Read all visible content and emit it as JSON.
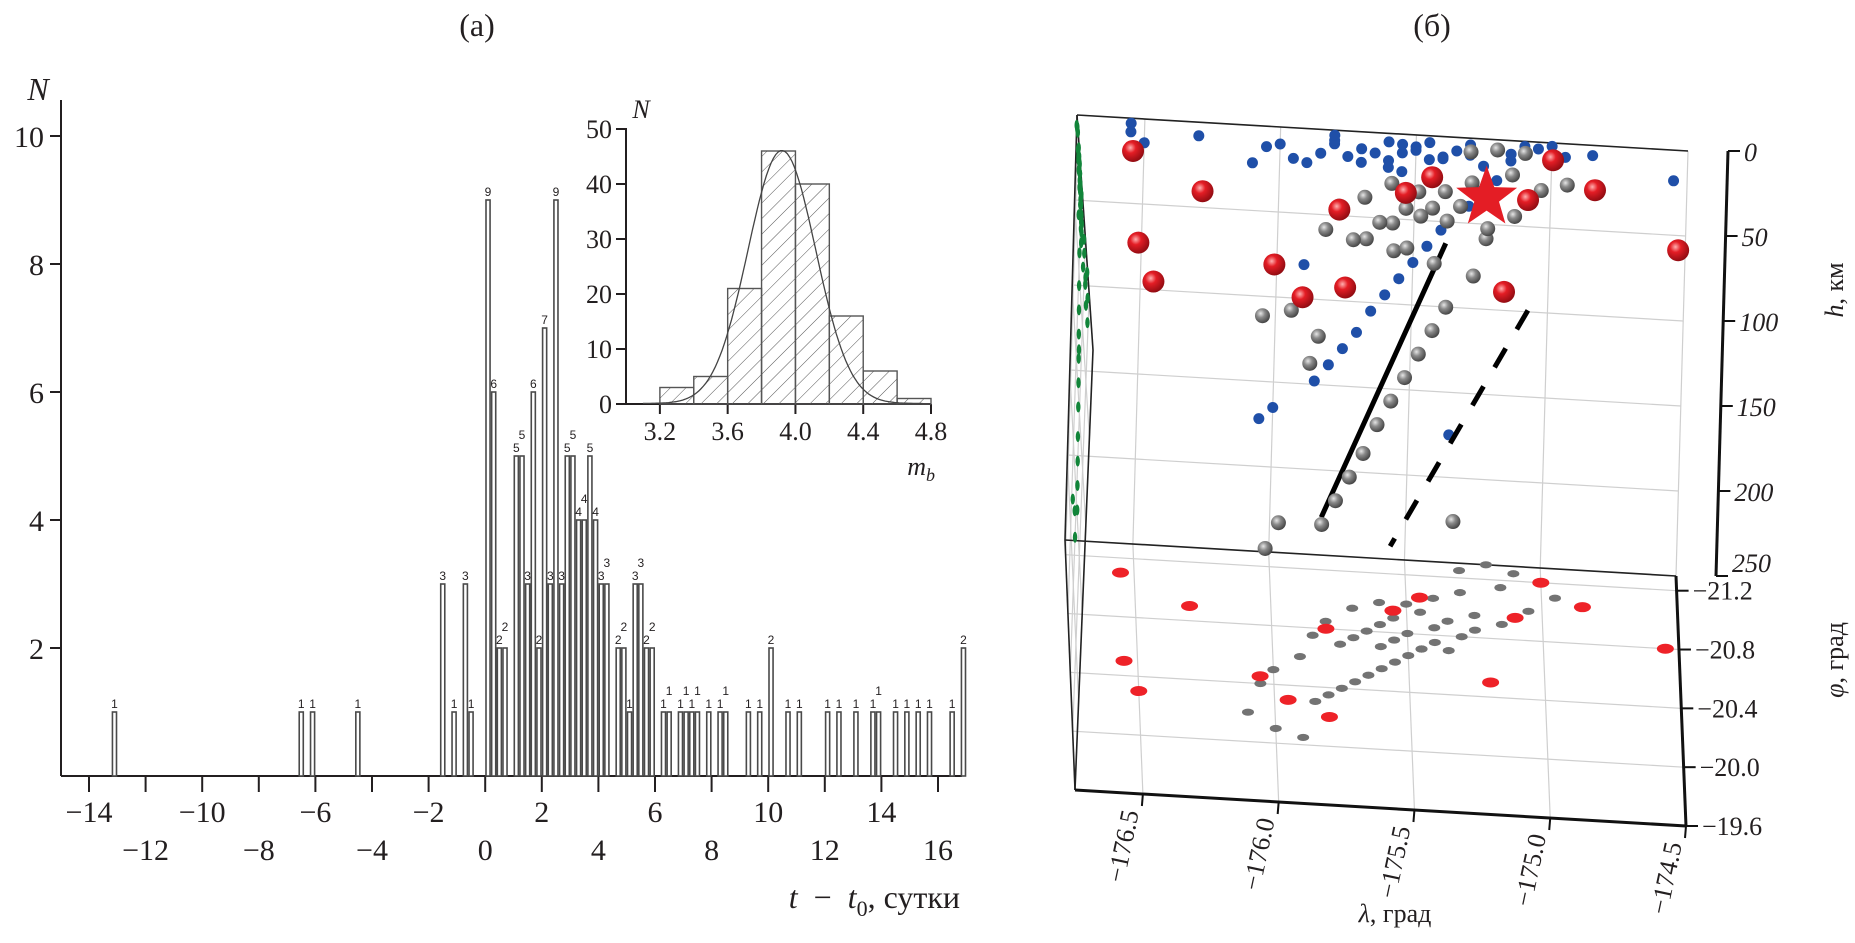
{
  "figure": {
    "panel_a_title": "(a)",
    "panel_b_title": "(б)"
  },
  "chart_data": [
    {
      "type": "bar",
      "name": "main-histogram",
      "title": "(a)",
      "xlabel": "t − t0, сутки",
      "xlabel_parts": {
        "t": "t",
        "minus": "−",
        "t0": "t",
        "sub": "0",
        "unit": ", сутки"
      },
      "ylabel": "N",
      "xlim": [
        -15.5,
        17.3
      ],
      "ylim": [
        0,
        10.6
      ],
      "bin_width": 0.2,
      "x_ticks_major": [
        -14,
        -10,
        -6,
        -2,
        2,
        6,
        10,
        14
      ],
      "x_ticks_minor": [
        -12,
        -8,
        -4,
        0,
        4,
        8,
        12,
        16
      ],
      "x_tick_labels_top": [
        "−14",
        "−10",
        "−6",
        "−2",
        "2",
        "6",
        "10",
        "14"
      ],
      "x_tick_labels_bottom": [
        "−12",
        "−8",
        "−4",
        "0",
        "4",
        "8",
        "12",
        "16"
      ],
      "y_ticks": [
        2,
        4,
        6,
        8,
        10
      ],
      "y_tick_labels": [
        "2",
        "4",
        "6",
        "8",
        "10"
      ],
      "bars": [
        {
          "x": -13.2,
          "n": 1
        },
        {
          "x": -6.6,
          "n": 1
        },
        {
          "x": -6.2,
          "n": 1
        },
        {
          "x": -4.6,
          "n": 1
        },
        {
          "x": -1.6,
          "n": 3
        },
        {
          "x": -1.2,
          "n": 1
        },
        {
          "x": -0.8,
          "n": 3
        },
        {
          "x": -0.6,
          "n": 1
        },
        {
          "x": 0.0,
          "n": 9
        },
        {
          "x": 0.2,
          "n": 6
        },
        {
          "x": 0.4,
          "n": 2
        },
        {
          "x": 0.6,
          "n": 2
        },
        {
          "x": 1.0,
          "n": 5
        },
        {
          "x": 1.2,
          "n": 5
        },
        {
          "x": 1.4,
          "n": 3
        },
        {
          "x": 1.6,
          "n": 6
        },
        {
          "x": 1.8,
          "n": 2
        },
        {
          "x": 2.0,
          "n": 7
        },
        {
          "x": 2.2,
          "n": 3
        },
        {
          "x": 2.4,
          "n": 9
        },
        {
          "x": 2.6,
          "n": 3
        },
        {
          "x": 2.8,
          "n": 5
        },
        {
          "x": 3.0,
          "n": 5
        },
        {
          "x": 3.2,
          "n": 4
        },
        {
          "x": 3.4,
          "n": 4
        },
        {
          "x": 3.6,
          "n": 5
        },
        {
          "x": 3.8,
          "n": 4
        },
        {
          "x": 4.0,
          "n": 3
        },
        {
          "x": 4.2,
          "n": 3
        },
        {
          "x": 4.6,
          "n": 2
        },
        {
          "x": 4.8,
          "n": 2
        },
        {
          "x": 5.0,
          "n": 1
        },
        {
          "x": 5.2,
          "n": 3
        },
        {
          "x": 5.4,
          "n": 3
        },
        {
          "x": 5.6,
          "n": 2
        },
        {
          "x": 5.8,
          "n": 2
        },
        {
          "x": 6.2,
          "n": 1
        },
        {
          "x": 6.4,
          "n": 1
        },
        {
          "x": 6.8,
          "n": 1
        },
        {
          "x": 7.0,
          "n": 1
        },
        {
          "x": 7.2,
          "n": 1
        },
        {
          "x": 7.4,
          "n": 1
        },
        {
          "x": 7.8,
          "n": 1
        },
        {
          "x": 8.2,
          "n": 1
        },
        {
          "x": 8.4,
          "n": 1
        },
        {
          "x": 9.2,
          "n": 1
        },
        {
          "x": 9.6,
          "n": 1
        },
        {
          "x": 10.0,
          "n": 2
        },
        {
          "x": 10.6,
          "n": 1
        },
        {
          "x": 11.0,
          "n": 1
        },
        {
          "x": 12.0,
          "n": 1
        },
        {
          "x": 12.4,
          "n": 1
        },
        {
          "x": 13.0,
          "n": 1
        },
        {
          "x": 13.6,
          "n": 1
        },
        {
          "x": 13.8,
          "n": 1
        },
        {
          "x": 14.4,
          "n": 1
        },
        {
          "x": 14.8,
          "n": 1
        },
        {
          "x": 15.2,
          "n": 1
        },
        {
          "x": 15.6,
          "n": 1
        },
        {
          "x": 16.4,
          "n": 1
        },
        {
          "x": 16.8,
          "n": 2
        }
      ]
    },
    {
      "type": "bar",
      "name": "magnitude-inset-histogram",
      "xlabel": "mb",
      "xlabel_parts": {
        "m": "m",
        "sub": "b"
      },
      "ylabel": "N",
      "xlim": [
        3.0,
        4.8
      ],
      "ylim": [
        0,
        50
      ],
      "x_ticks": [
        3.2,
        3.6,
        4.0,
        4.4,
        4.8
      ],
      "x_tick_labels": [
        "3.2",
        "3.6",
        "4.0",
        "4.4",
        "4.8"
      ],
      "y_ticks": [
        0,
        10,
        20,
        30,
        40,
        50
      ],
      "y_tick_labels": [
        "0",
        "10",
        "20",
        "30",
        "40",
        "50"
      ],
      "bin_edges": [
        3.2,
        3.4,
        3.6,
        3.8,
        4.0,
        4.2,
        4.4,
        4.6,
        4.8
      ],
      "values": [
        3,
        5,
        21,
        46,
        40,
        16,
        6,
        1
      ],
      "fit_curve": {
        "type": "gaussian",
        "mean": 3.92,
        "sigma": 0.2,
        "peak": 46,
        "x_range": [
          3.1,
          4.75
        ]
      }
    },
    {
      "type": "scatter",
      "name": "hypocenter-3d",
      "title": "(б)",
      "xlabel": "λ, град",
      "ylabel": "φ, град",
      "zlabel": "h, км",
      "xlabel_parts": {
        "sym": "λ",
        "unit": ", град"
      },
      "ylabel_parts": {
        "sym": "φ",
        "unit": ", град"
      },
      "zlabel_parts": {
        "sym": "h",
        "unit": ", км"
      },
      "xlim": [
        -176.75,
        -174.5
      ],
      "ylim": [
        -19.6,
        -21.3
      ],
      "zlim": [
        0,
        250
      ],
      "x_ticks": [
        -176.5,
        -176.0,
        -175.5,
        -175.0,
        -174.5
      ],
      "x_tick_labels": [
        "−176.5",
        "−176.0",
        "−175.5",
        "−175.0",
        "−174.5"
      ],
      "y_ticks": [
        -21.2,
        -20.8,
        -20.4,
        -20.0,
        -19.6
      ],
      "y_tick_labels": [
        "−21.2",
        "−20.8",
        "−20.4",
        "−20.0",
        "−19.6"
      ],
      "z_ticks": [
        0,
        50,
        100,
        150,
        200,
        250
      ],
      "z_tick_labels": [
        "0",
        "50",
        "100",
        "150",
        "200",
        "250"
      ],
      "colors": {
        "main": "#e41d25",
        "aftershock": "#7a7a7a",
        "proj_xz": "#1f4fa8",
        "proj_yz": "#12853a",
        "line": "#000000"
      },
      "mainshock": {
        "lon": -175.25,
        "lat": -21.0,
        "depth": 10
      },
      "large_events": [
        {
          "lon": -176.55,
          "lat": -21.1,
          "depth": 3
        },
        {
          "lon": -176.55,
          "lat": -20.5,
          "depth": 8
        },
        {
          "lon": -176.5,
          "lat": -20.3,
          "depth": 14
        },
        {
          "lon": -176.05,
          "lat": -20.45,
          "depth": 12
        },
        {
          "lon": -175.95,
          "lat": -20.3,
          "depth": 18
        },
        {
          "lon": -175.8,
          "lat": -20.8,
          "depth": 6
        },
        {
          "lon": -175.55,
          "lat": -20.95,
          "depth": 6
        },
        {
          "lon": -175.45,
          "lat": -21.05,
          "depth": 4
        },
        {
          "lon": -175.2,
          "lat": -20.5,
          "depth": 24
        },
        {
          "lon": -175.1,
          "lat": -20.95,
          "depth": 6
        },
        {
          "lon": -175.0,
          "lat": -21.2,
          "depth": 2
        },
        {
          "lon": -174.85,
          "lat": -21.05,
          "depth": 6
        },
        {
          "lon": -174.55,
          "lat": -20.8,
          "depth": 18
        },
        {
          "lon": -175.8,
          "lat": -20.2,
          "depth": 3
        },
        {
          "lon": -176.3,
          "lat": -20.9,
          "depth": 8
        }
      ],
      "aftershocks": [
        {
          "lon": -175.3,
          "lat": -21.25,
          "depth": 4
        },
        {
          "lon": -175.2,
          "lat": -21.3,
          "depth": 6
        },
        {
          "lon": -175.1,
          "lat": -21.25,
          "depth": 3
        },
        {
          "lon": -175.15,
          "lat": -21.15,
          "depth": 8
        },
        {
          "lon": -175.3,
          "lat": -21.1,
          "depth": 10
        },
        {
          "lon": -175.4,
          "lat": -21.05,
          "depth": 12
        },
        {
          "lon": -175.5,
          "lat": -21.0,
          "depth": 9
        },
        {
          "lon": -175.45,
          "lat": -20.95,
          "depth": 14
        },
        {
          "lon": -175.55,
          "lat": -20.9,
          "depth": 11
        },
        {
          "lon": -175.6,
          "lat": -20.85,
          "depth": 16
        },
        {
          "lon": -175.65,
          "lat": -20.8,
          "depth": 12
        },
        {
          "lon": -175.5,
          "lat": -20.8,
          "depth": 7
        },
        {
          "lon": -175.4,
          "lat": -20.85,
          "depth": 13
        },
        {
          "lon": -175.35,
          "lat": -20.9,
          "depth": 8
        },
        {
          "lon": -175.7,
          "lat": -20.75,
          "depth": 18
        },
        {
          "lon": -175.75,
          "lat": -20.7,
          "depth": 15
        },
        {
          "lon": -175.6,
          "lat": -20.7,
          "depth": 20
        },
        {
          "lon": -175.55,
          "lat": -20.75,
          "depth": 22
        },
        {
          "lon": -175.45,
          "lat": -20.7,
          "depth": 26
        },
        {
          "lon": -175.25,
          "lat": -20.95,
          "depth": 30
        },
        {
          "lon": -175.3,
          "lat": -20.8,
          "depth": 40
        },
        {
          "lon": -175.4,
          "lat": -20.75,
          "depth": 55
        },
        {
          "lon": -175.45,
          "lat": -20.7,
          "depth": 65
        },
        {
          "lon": -175.5,
          "lat": -20.65,
          "depth": 75
        },
        {
          "lon": -175.55,
          "lat": -20.6,
          "depth": 85
        },
        {
          "lon": -175.6,
          "lat": -20.55,
          "depth": 95
        },
        {
          "lon": -175.65,
          "lat": -20.5,
          "depth": 105
        },
        {
          "lon": -175.7,
          "lat": -20.45,
          "depth": 118
        },
        {
          "lon": -175.75,
          "lat": -20.4,
          "depth": 128
        },
        {
          "lon": -175.8,
          "lat": -20.35,
          "depth": 138
        },
        {
          "lon": -175.85,
          "lat": -20.3,
          "depth": 148
        },
        {
          "lon": -175.9,
          "lat": -20.6,
          "depth": 80
        },
        {
          "lon": -176.0,
          "lat": -20.5,
          "depth": 165
        },
        {
          "lon": -176.05,
          "lat": -20.4,
          "depth": 172
        },
        {
          "lon": -175.35,
          "lat": -20.7,
          "depth": 175
        },
        {
          "lon": -176.1,
          "lat": -20.2,
          "depth": 22
        },
        {
          "lon": -176.0,
          "lat": -20.1,
          "depth": 10
        },
        {
          "lon": -175.9,
          "lat": -20.05,
          "depth": 20
        },
        {
          "lon": -175.05,
          "lat": -21.0,
          "depth": 4
        },
        {
          "lon": -174.95,
          "lat": -21.1,
          "depth": 8
        },
        {
          "lon": -175.15,
          "lat": -20.9,
          "depth": 12
        },
        {
          "lon": -175.25,
          "lat": -20.85,
          "depth": 16
        },
        {
          "lon": -175.7,
          "lat": -20.95,
          "depth": 10
        },
        {
          "lon": -175.8,
          "lat": -20.85,
          "depth": 8
        },
        {
          "lon": -175.85,
          "lat": -20.75,
          "depth": 14
        },
        {
          "lon": -175.6,
          "lat": -21.0,
          "depth": 5
        }
      ],
      "slab_line_solid": {
        "from": {
          "lon": -175.4,
          "lat": -20.9,
          "depth": 30
        },
        "to": {
          "lon": -175.85,
          "lat": -20.35,
          "depth": 148
        }
      },
      "slab_line_dashed": {
        "from": {
          "lon": -175.1,
          "lat": -20.7,
          "depth": 50
        },
        "to": {
          "lon": -175.6,
          "lat": -20.2,
          "depth": 150
        }
      }
    }
  ]
}
